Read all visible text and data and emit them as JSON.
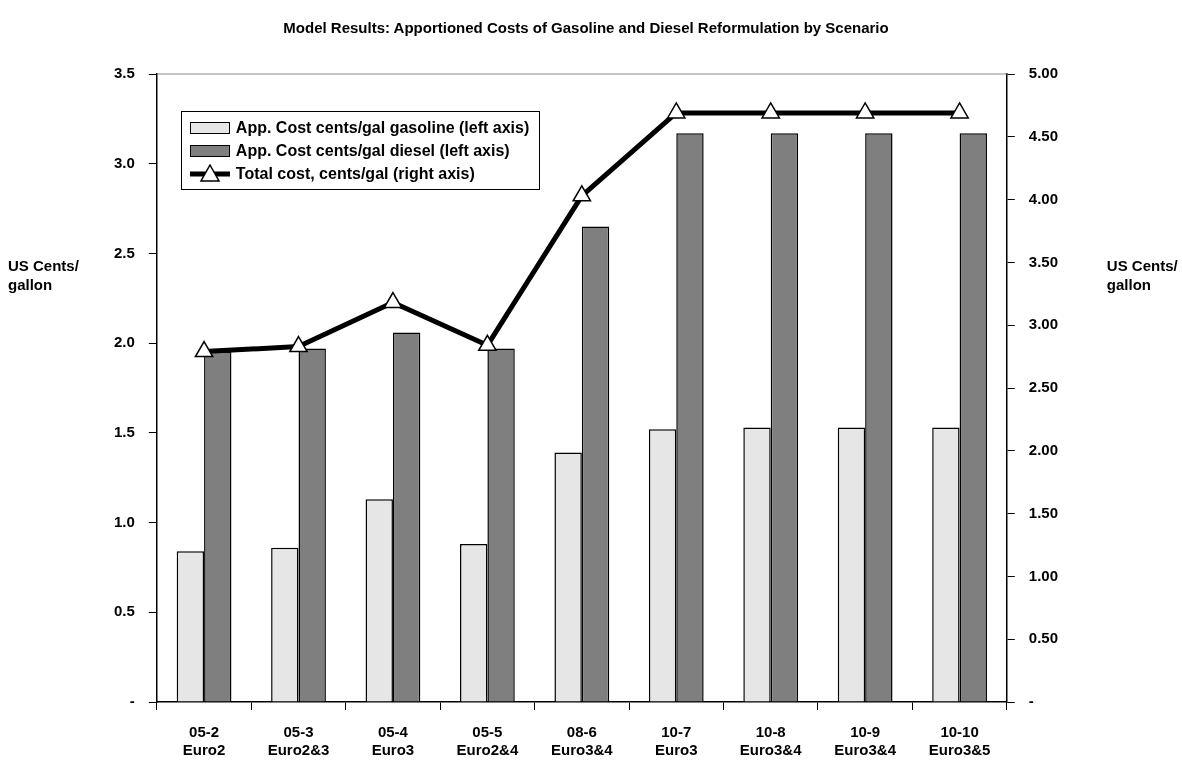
{
  "chart_data": {
    "type": "bar",
    "title": "Model Results: Apportioned Costs of Gasoline and Diesel Reformulation by Scenario",
    "ylabel": "US Cents/ gallon",
    "y2label": "US Cents/ gallon",
    "categories": [
      "05-2 Euro2",
      "05-3 Euro2&3",
      "05-4 Euro3",
      "05-5 Euro2&4",
      "08-6 Euro3&4",
      "10-7 Euro3",
      "10-8 Euro3&4",
      "10-9 Euro3&4",
      "10-10 Euro3&5"
    ],
    "series": [
      {
        "name": "App. Cost cents/gal gasoline (left axis)",
        "color": "#e6e6e6",
        "values": [
          0.84,
          0.86,
          1.13,
          0.88,
          1.39,
          1.52,
          1.53,
          1.53,
          1.53
        ]
      },
      {
        "name": "App. Cost cents/gal diesel (left axis)",
        "color": "#7f7f7f",
        "values": [
          1.95,
          1.97,
          2.06,
          1.97,
          2.65,
          3.17,
          3.17,
          3.17,
          3.17
        ]
      },
      {
        "name": "Total cost, cents/gal (right axis)",
        "type": "line",
        "axis": "y2",
        "color": "#000000",
        "marker": "triangle",
        "values": [
          2.79,
          2.83,
          3.18,
          2.84,
          4.03,
          4.69,
          4.69,
          4.69,
          4.69
        ]
      }
    ],
    "ylim": [
      0,
      3.5
    ],
    "yticks": [
      {
        "value": 0,
        "label": "-"
      },
      0.5,
      {
        "value": 1,
        "label": "1.0"
      },
      1.5,
      {
        "value": 2,
        "label": "2.0"
      },
      2.5,
      {
        "value": 3,
        "label": "3.0"
      },
      3.5
    ],
    "y2lim": [
      0,
      5
    ],
    "y2ticks": [
      {
        "value": 0,
        "label": "-"
      },
      {
        "value": 0.5,
        "label": "0.50"
      },
      {
        "value": 1,
        "label": "1.00"
      },
      {
        "value": 1.5,
        "label": "1.50"
      },
      {
        "value": 2,
        "label": "2.00"
      },
      {
        "value": 2.5,
        "label": "2.50"
      },
      {
        "value": 3,
        "label": "3.00"
      },
      {
        "value": 3.5,
        "label": "3.50"
      },
      {
        "value": 4,
        "label": "4.00"
      },
      {
        "value": 4.5,
        "label": "4.50"
      },
      {
        "value": 5,
        "label": "5.00"
      }
    ],
    "grid": false,
    "legend": "top left"
  }
}
